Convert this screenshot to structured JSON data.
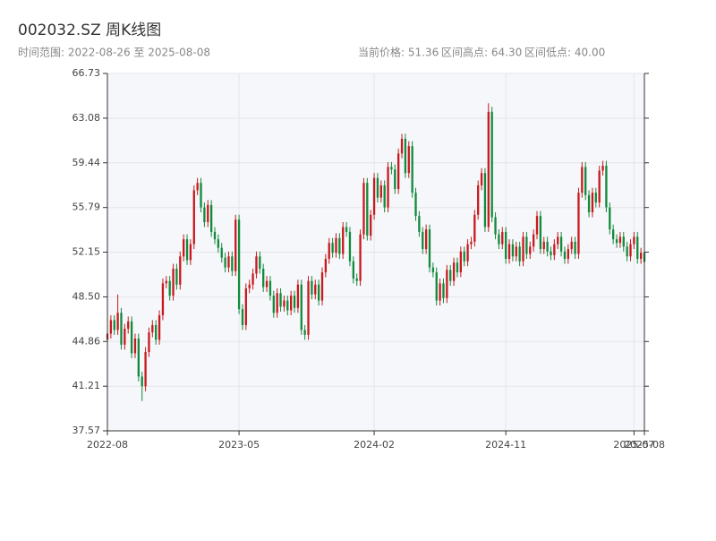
{
  "chart_data": {
    "type": "candlestick",
    "title": "002032.SZ 周K线图",
    "subtitle": "时间范围: 2022-08-26 至 2025-08-08",
    "info": [
      "当前价格: 51.36",
      "区间高点: 64.30",
      "区间低点: 40.00"
    ],
    "up_color": "#c8191e",
    "down_color": "#128a3c",
    "grid": true,
    "ylim": [
      37.57,
      66.73
    ],
    "yticks": [
      37.57,
      41.21,
      44.86,
      {
        "value": 48.5,
        "label": "48.50"
      },
      52.15,
      55.79,
      59.44,
      63.08,
      66.73
    ],
    "xlim": [
      0,
      155
    ],
    "xticks": [
      {
        "value": 0,
        "label": "2022-08"
      },
      {
        "value": 38,
        "label": "2023-05"
      },
      {
        "value": 77,
        "label": "2024-02"
      },
      {
        "value": 115,
        "label": "2024-11"
      },
      {
        "value": 152,
        "label": "2025-07"
      },
      {
        "value": 155,
        "label": "2025-08"
      }
    ],
    "open": [
      45.0,
      45.5,
      46.6,
      45.8,
      47.2,
      44.6,
      45.9,
      46.5,
      43.9,
      45.1,
      42.0,
      41.2,
      44.0,
      45.6,
      46.2,
      45.0,
      47.0,
      49.6,
      49.8,
      48.6,
      50.8,
      49.5,
      51.8,
      53.2,
      51.5,
      52.8,
      57.2,
      57.8,
      55.8,
      54.6,
      56.0,
      53.8,
      53.2,
      52.5,
      51.7,
      50.9,
      51.8,
      50.6,
      54.8,
      47.5,
      46.2,
      49.2,
      49.5,
      50.4,
      51.8,
      50.8,
      49.3,
      49.8,
      48.6,
      47.2,
      48.8,
      47.7,
      48.2,
      47.4,
      48.6,
      47.6,
      49.5,
      45.8,
      45.4,
      49.8,
      48.7,
      49.5,
      48.2,
      50.5,
      51.6,
      52.9,
      52.1,
      53.3,
      52.0,
      54.2,
      53.8,
      51.4,
      50.0,
      49.8,
      53.6,
      57.8,
      53.5,
      55.2,
      58.2,
      56.6,
      57.6,
      55.8,
      59.1,
      58.9,
      57.3,
      60.2,
      61.4,
      58.6,
      60.8,
      57.0,
      55.1,
      53.8,
      52.4,
      54.0,
      50.9,
      50.5,
      48.2,
      49.6,
      48.4,
      50.7,
      49.8,
      51.3,
      50.5,
      52.2,
      51.4,
      52.8,
      53.0,
      55.2,
      57.6,
      58.6,
      54.2,
      63.6,
      55.0,
      53.6,
      52.8,
      53.8,
      51.6,
      52.8,
      51.8,
      52.6,
      51.4,
      53.4,
      52.0,
      52.6,
      53.6,
      55.1,
      52.4,
      53.0,
      52.2,
      51.9,
      52.8,
      53.4,
      52.2,
      51.6,
      52.4,
      53.0,
      52.0,
      57.0,
      59.1,
      56.8,
      55.4,
      57.0,
      56.2,
      58.8,
      59.2,
      55.8,
      54.0,
      53.2,
      52.9,
      53.4,
      52.6,
      51.8,
      52.8,
      53.4,
      51.6,
      52.1
    ],
    "close": [
      45.5,
      46.6,
      45.8,
      47.2,
      44.6,
      45.9,
      46.5,
      43.9,
      45.1,
      42.0,
      41.2,
      44.0,
      45.6,
      46.2,
      45.0,
      47.0,
      49.6,
      49.8,
      48.6,
      50.8,
      49.5,
      51.8,
      53.2,
      51.5,
      52.8,
      57.2,
      57.8,
      55.8,
      54.6,
      56.0,
      53.8,
      53.2,
      52.5,
      51.7,
      50.9,
      51.8,
      50.6,
      54.8,
      47.5,
      46.2,
      49.2,
      49.5,
      50.4,
      51.8,
      50.8,
      49.3,
      49.8,
      48.6,
      47.2,
      48.8,
      47.7,
      48.2,
      47.4,
      48.6,
      47.6,
      49.5,
      45.8,
      45.4,
      49.8,
      48.7,
      49.5,
      48.2,
      50.5,
      51.6,
      52.9,
      52.1,
      53.3,
      52.0,
      54.2,
      53.8,
      51.4,
      50.0,
      49.8,
      53.6,
      57.8,
      53.5,
      55.2,
      58.2,
      56.6,
      57.6,
      55.8,
      59.1,
      58.9,
      57.3,
      60.2,
      61.4,
      58.6,
      60.8,
      57.0,
      55.1,
      53.8,
      52.4,
      54.0,
      50.9,
      50.5,
      48.2,
      49.6,
      48.4,
      50.7,
      49.8,
      51.3,
      50.5,
      52.2,
      51.4,
      52.8,
      53.0,
      55.2,
      57.6,
      58.6,
      54.2,
      63.6,
      55.0,
      53.6,
      52.8,
      53.8,
      51.6,
      52.8,
      51.8,
      52.6,
      51.4,
      53.4,
      52.0,
      52.6,
      53.6,
      55.1,
      52.4,
      53.0,
      52.2,
      51.9,
      52.8,
      53.4,
      52.2,
      51.6,
      52.4,
      53.0,
      52.0,
      57.0,
      59.1,
      56.8,
      55.4,
      57.0,
      56.2,
      58.8,
      59.2,
      55.8,
      54.0,
      53.2,
      52.9,
      53.4,
      52.6,
      51.8,
      52.8,
      53.4,
      51.6,
      52.1,
      51.36
    ],
    "high": [
      45.9,
      47.0,
      47.0,
      48.7,
      47.6,
      46.3,
      46.9,
      46.9,
      45.5,
      45.5,
      42.4,
      44.4,
      46.0,
      46.6,
      46.6,
      47.4,
      50.0,
      50.2,
      50.2,
      51.2,
      51.2,
      52.2,
      53.6,
      53.6,
      53.2,
      57.6,
      58.2,
      58.2,
      56.2,
      56.4,
      56.4,
      54.2,
      53.6,
      52.9,
      52.1,
      52.2,
      52.2,
      55.2,
      55.2,
      47.9,
      49.6,
      49.9,
      50.8,
      52.2,
      52.2,
      51.2,
      50.2,
      50.2,
      49.0,
      49.2,
      49.2,
      48.6,
      48.6,
      49.0,
      49.0,
      49.9,
      49.9,
      46.2,
      50.2,
      50.2,
      49.9,
      49.9,
      50.9,
      52.0,
      53.3,
      53.3,
      53.7,
      53.7,
      54.6,
      54.6,
      54.2,
      51.8,
      50.4,
      54.0,
      58.2,
      58.2,
      55.6,
      58.6,
      58.6,
      58.0,
      58.0,
      59.5,
      59.5,
      59.3,
      60.6,
      61.8,
      61.8,
      61.2,
      61.2,
      57.4,
      55.5,
      54.2,
      54.4,
      54.4,
      51.3,
      50.9,
      50.0,
      50.0,
      51.1,
      51.1,
      51.7,
      51.7,
      52.6,
      52.6,
      53.2,
      53.4,
      55.6,
      58.0,
      59.0,
      59.0,
      64.3,
      64.0,
      55.4,
      54.0,
      54.2,
      54.2,
      53.2,
      53.2,
      53.0,
      53.0,
      53.8,
      53.8,
      53.0,
      54.0,
      55.5,
      55.5,
      53.4,
      53.4,
      52.6,
      53.2,
      53.8,
      53.8,
      52.6,
      52.8,
      53.4,
      53.4,
      57.4,
      59.5,
      59.5,
      57.2,
      57.4,
      57.4,
      59.2,
      59.6,
      59.6,
      56.2,
      54.4,
      53.6,
      53.8,
      53.8,
      53.0,
      53.2,
      53.8,
      53.8,
      52.5,
      52.5
    ],
    "low": [
      44.6,
      45.1,
      45.4,
      45.4,
      44.2,
      44.2,
      45.5,
      43.5,
      43.5,
      41.6,
      40.0,
      40.8,
      43.6,
      45.2,
      44.6,
      44.6,
      46.6,
      49.2,
      48.2,
      48.2,
      49.1,
      49.1,
      51.4,
      51.1,
      51.1,
      52.4,
      56.8,
      55.4,
      54.2,
      54.2,
      53.4,
      52.8,
      52.1,
      51.3,
      50.5,
      50.5,
      50.2,
      50.2,
      47.1,
      45.8,
      45.8,
      48.8,
      49.1,
      50.0,
      50.4,
      48.9,
      48.9,
      48.2,
      46.8,
      46.8,
      47.3,
      47.3,
      47.0,
      47.0,
      47.2,
      47.2,
      45.4,
      45.0,
      45.0,
      48.3,
      48.3,
      47.8,
      47.8,
      50.1,
      51.2,
      51.7,
      51.7,
      51.6,
      51.6,
      53.4,
      51.0,
      49.6,
      49.4,
      49.4,
      53.2,
      53.1,
      53.1,
      54.8,
      56.2,
      56.2,
      55.4,
      55.4,
      58.5,
      56.9,
      56.9,
      59.8,
      58.2,
      58.2,
      56.6,
      54.7,
      53.4,
      52.0,
      52.0,
      50.5,
      50.1,
      47.8,
      47.8,
      48.0,
      48.0,
      49.4,
      49.4,
      50.1,
      50.1,
      51.0,
      51.0,
      52.4,
      52.6,
      54.8,
      57.2,
      53.8,
      53.8,
      54.6,
      53.2,
      52.4,
      52.4,
      51.2,
      51.2,
      51.4,
      51.4,
      51.0,
      51.0,
      51.6,
      51.6,
      52.2,
      53.2,
      52.0,
      52.0,
      51.8,
      51.5,
      51.5,
      52.4,
      51.8,
      51.2,
      51.2,
      52.0,
      51.6,
      51.6,
      56.6,
      56.4,
      55.0,
      55.0,
      55.8,
      55.8,
      58.4,
      55.4,
      53.6,
      52.8,
      52.5,
      52.5,
      52.2,
      51.4,
      51.4,
      52.4,
      51.2,
      51.2,
      50.96
    ]
  }
}
